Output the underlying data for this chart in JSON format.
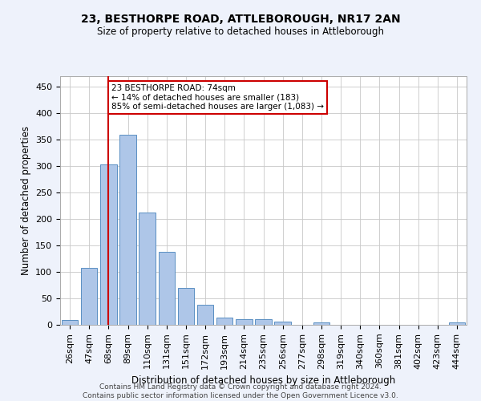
{
  "title1": "23, BESTHORPE ROAD, ATTLEBOROUGH, NR17 2AN",
  "title2": "Size of property relative to detached houses in Attleborough",
  "xlabel": "Distribution of detached houses by size in Attleborough",
  "ylabel": "Number of detached properties",
  "categories": [
    "26sqm",
    "47sqm",
    "68sqm",
    "89sqm",
    "110sqm",
    "131sqm",
    "151sqm",
    "172sqm",
    "193sqm",
    "214sqm",
    "235sqm",
    "256sqm",
    "277sqm",
    "298sqm",
    "319sqm",
    "340sqm",
    "360sqm",
    "381sqm",
    "402sqm",
    "423sqm",
    "444sqm"
  ],
  "values": [
    9,
    108,
    303,
    360,
    213,
    138,
    69,
    38,
    13,
    11,
    10,
    6,
    0,
    4,
    0,
    0,
    0,
    0,
    0,
    0,
    4
  ],
  "bar_color": "#aec6e8",
  "bar_edge_color": "#5a8fc2",
  "vline_x_idx": 2,
  "vline_color": "#cc0000",
  "annotation_line1": "23 BESTHORPE ROAD: 74sqm",
  "annotation_line2": "← 14% of detached houses are smaller (183)",
  "annotation_line3": "85% of semi-detached houses are larger (1,083) →",
  "annotation_box_color": "#cc0000",
  "footer1": "Contains HM Land Registry data © Crown copyright and database right 2024.",
  "footer2": "Contains public sector information licensed under the Open Government Licence v3.0.",
  "ylim": [
    0,
    470
  ],
  "yticks": [
    0,
    50,
    100,
    150,
    200,
    250,
    300,
    350,
    400,
    450
  ],
  "bg_color": "#eef2fb",
  "plot_bg_color": "#ffffff",
  "grid_color": "#c8c8c8",
  "title1_fontsize": 10,
  "title2_fontsize": 8.5,
  "ylabel_fontsize": 8.5,
  "xlabel_fontsize": 8.5,
  "tick_fontsize": 8,
  "footer_fontsize": 6.5,
  "ann_fontsize": 7.5
}
